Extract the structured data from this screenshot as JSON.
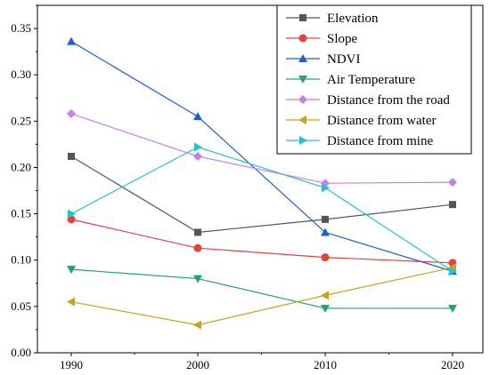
{
  "chart_data": {
    "type": "line",
    "x": [
      "1990",
      "2000",
      "2010",
      "2020"
    ],
    "ylim": [
      0,
      0.375
    ],
    "yticks": [
      "0.00",
      "0.05",
      "0.10",
      "0.15",
      "0.20",
      "0.25",
      "0.30",
      "0.35"
    ],
    "ytick_values": [
      0,
      0.05,
      0.1,
      0.15,
      0.2,
      0.25,
      0.3,
      0.35
    ],
    "grid": false,
    "legend_position": "top-right",
    "series": [
      {
        "name": "Elevation",
        "color": "#555555",
        "marker": "square",
        "values": [
          0.212,
          0.13,
          0.144,
          0.16
        ]
      },
      {
        "name": "Slope",
        "color": "#e8403c",
        "marker": "circle",
        "values": [
          0.144,
          0.113,
          0.103,
          0.097
        ]
      },
      {
        "name": "NDVI",
        "color": "#1f5fd6",
        "marker": "triangle-up",
        "values": [
          0.336,
          0.255,
          0.13,
          0.088
        ]
      },
      {
        "name": "Air Temperature",
        "color": "#1fa37a",
        "marker": "triangle-down",
        "values": [
          0.09,
          0.08,
          0.048,
          0.048
        ]
      },
      {
        "name": "Distance from the road",
        "color": "#c77ee8",
        "marker": "diamond",
        "values": [
          0.258,
          0.212,
          0.183,
          0.184
        ]
      },
      {
        "name": "Distance from water",
        "color": "#c9a21a",
        "marker": "triangle-left",
        "values": [
          0.055,
          0.03,
          0.062,
          0.092
        ]
      },
      {
        "name": "Distance from mine",
        "color": "#1ec4cf",
        "marker": "triangle-right",
        "values": [
          0.15,
          0.222,
          0.178,
          0.088
        ]
      }
    ]
  }
}
